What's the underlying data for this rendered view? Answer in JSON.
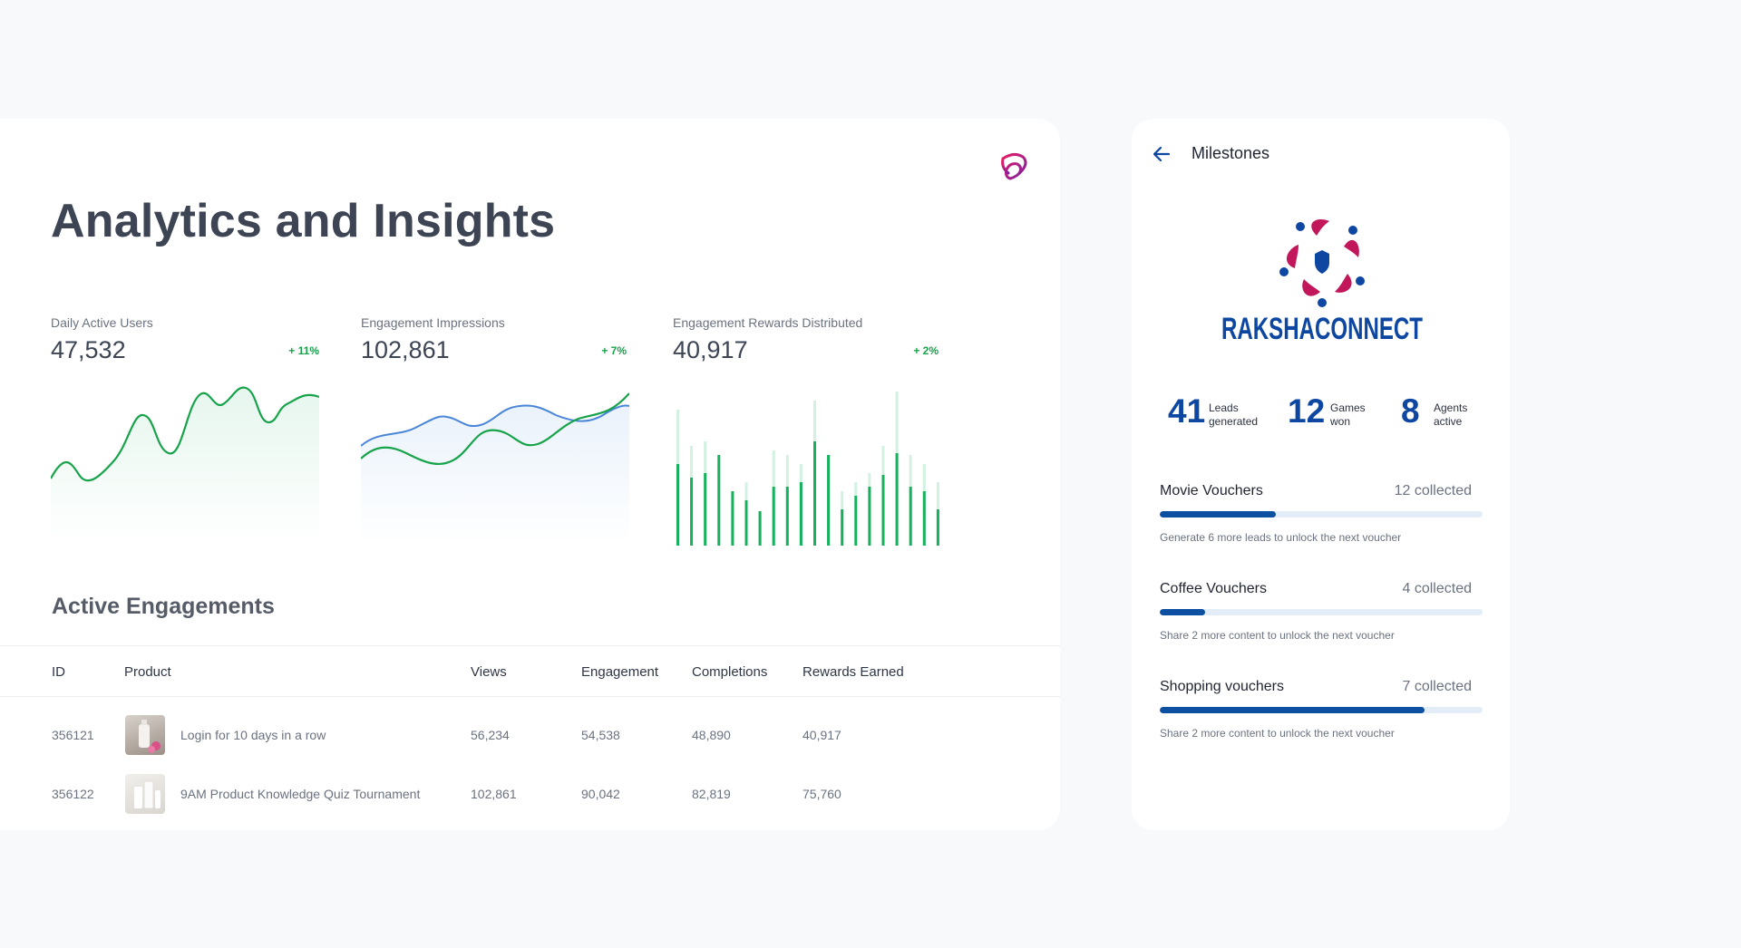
{
  "analytics": {
    "title": "Analytics and Insights",
    "metrics": [
      {
        "label": "Daily Active Users",
        "value": "47,532",
        "delta": "+ 11%"
      },
      {
        "label": "Engagement Impressions",
        "value": "102,861",
        "delta": "+ 7%"
      },
      {
        "label": "Engagement Rewards Distributed",
        "value": "40,917",
        "delta": "+ 2%"
      }
    ],
    "section_title": "Active Engagements",
    "table": {
      "headers": [
        "ID",
        "Product",
        "Views",
        "Engagement",
        "Completions",
        "Rewards Earned"
      ],
      "rows": [
        {
          "id": "356121",
          "product": "Login for 10 days in a row",
          "views": "56,234",
          "engagement": "54,538",
          "completions": "48,890",
          "rewards": "40,917"
        },
        {
          "id": "356122",
          "product": "9AM Product Knowledge Quiz Tournament",
          "views": "102,861",
          "engagement": "90,042",
          "completions": "82,819",
          "rewards": "75,760"
        }
      ]
    }
  },
  "milestones": {
    "title": "Milestones",
    "logo_text": "RAKSHACONNECT",
    "stats": [
      {
        "value": "41",
        "label": "Leads generated"
      },
      {
        "value": "12",
        "label": "Games won"
      },
      {
        "value": "8",
        "label": "Agents active"
      }
    ],
    "vouchers": [
      {
        "name": "Movie Vouchers",
        "count": "12 collected",
        "progress": 0.36,
        "hint": "Generate 6 more leads to unlock the next voucher"
      },
      {
        "name": "Coffee Vouchers",
        "count": "4 collected",
        "progress": 0.14,
        "hint": "Share 2 more content to unlock the next voucher"
      },
      {
        "name": "Shopping vouchers",
        "count": "7 collected",
        "progress": 0.82,
        "hint": "Share 2 more content to unlock the next voucher"
      }
    ]
  },
  "colors": {
    "accent_green": "#17a34a",
    "accent_blue": "#0d47a1",
    "line_blue": "#4a86d8",
    "logo_red": "#c2185b"
  }
}
